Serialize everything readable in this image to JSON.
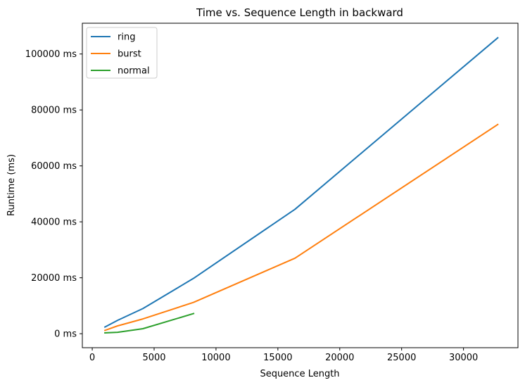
{
  "chart_data": {
    "type": "line",
    "title": "Time vs. Sequence Length in backward",
    "xlabel": "Sequence Length",
    "ylabel": "Runtime (ms)",
    "xlim": [
      -800,
      34400
    ],
    "ylim": [
      -5000,
      111000
    ],
    "x_ticks": [
      0,
      5000,
      10000,
      15000,
      20000,
      25000,
      30000
    ],
    "x_tick_labels": [
      "0",
      "5000",
      "10000",
      "15000",
      "20000",
      "25000",
      "30000"
    ],
    "y_ticks": [
      0,
      20000,
      40000,
      60000,
      80000,
      100000
    ],
    "y_tick_labels": [
      "0 ms",
      "20000 ms",
      "40000 ms",
      "60000 ms",
      "80000 ms",
      "100000 ms"
    ],
    "grid": false,
    "legend_position": "top-left",
    "series": [
      {
        "name": "ring",
        "color": "#1f77b4",
        "x": [
          1024,
          2048,
          4096,
          8192,
          16384,
          32768
        ],
        "y": [
          2400,
          4800,
          9000,
          19800,
          44500,
          105800
        ]
      },
      {
        "name": "burst",
        "color": "#ff7f0e",
        "x": [
          1024,
          2048,
          4096,
          8192,
          16384,
          32768
        ],
        "y": [
          1200,
          2800,
          5300,
          11200,
          27000,
          74800
        ]
      },
      {
        "name": "normal",
        "color": "#2ca02c",
        "x": [
          1024,
          2048,
          4096,
          8192
        ],
        "y": [
          300,
          500,
          1800,
          7200
        ]
      }
    ]
  }
}
